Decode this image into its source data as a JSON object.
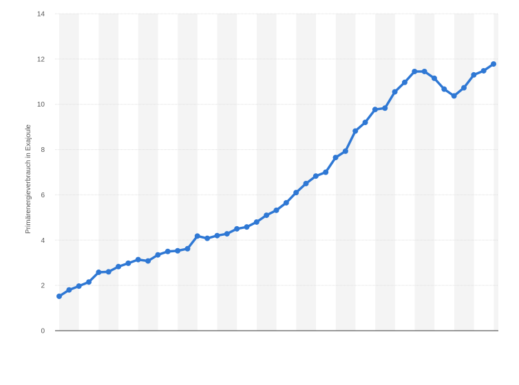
{
  "chart_data": {
    "type": "line",
    "title": "",
    "xlabel": "",
    "ylabel": "Primärenergieverbrauch in Exajoule",
    "ylim": [
      0,
      14
    ],
    "y_ticks": [
      "0",
      "2",
      "4",
      "6",
      "8",
      "10",
      "12",
      "14"
    ],
    "grid": true,
    "legend": "none",
    "series": [
      {
        "color": "#2f78d4",
        "values": [
          1.52,
          1.8,
          1.97,
          2.15,
          2.58,
          2.6,
          2.83,
          2.98,
          3.14,
          3.08,
          3.35,
          3.5,
          3.53,
          3.62,
          4.18,
          4.08,
          4.2,
          4.28,
          4.5,
          4.58,
          4.8,
          5.1,
          5.32,
          5.65,
          6.1,
          6.5,
          6.83,
          7.0,
          7.65,
          7.93,
          8.82,
          9.2,
          9.77,
          9.83,
          10.55,
          10.97,
          11.45,
          11.45,
          11.15,
          10.67,
          10.37,
          10.73,
          11.3,
          11.48,
          11.78
        ]
      }
    ],
    "colors": {
      "band": "#f4f4f4",
      "grid": "#dddddd",
      "axis": "#333333",
      "line": "#2f78d4"
    }
  }
}
